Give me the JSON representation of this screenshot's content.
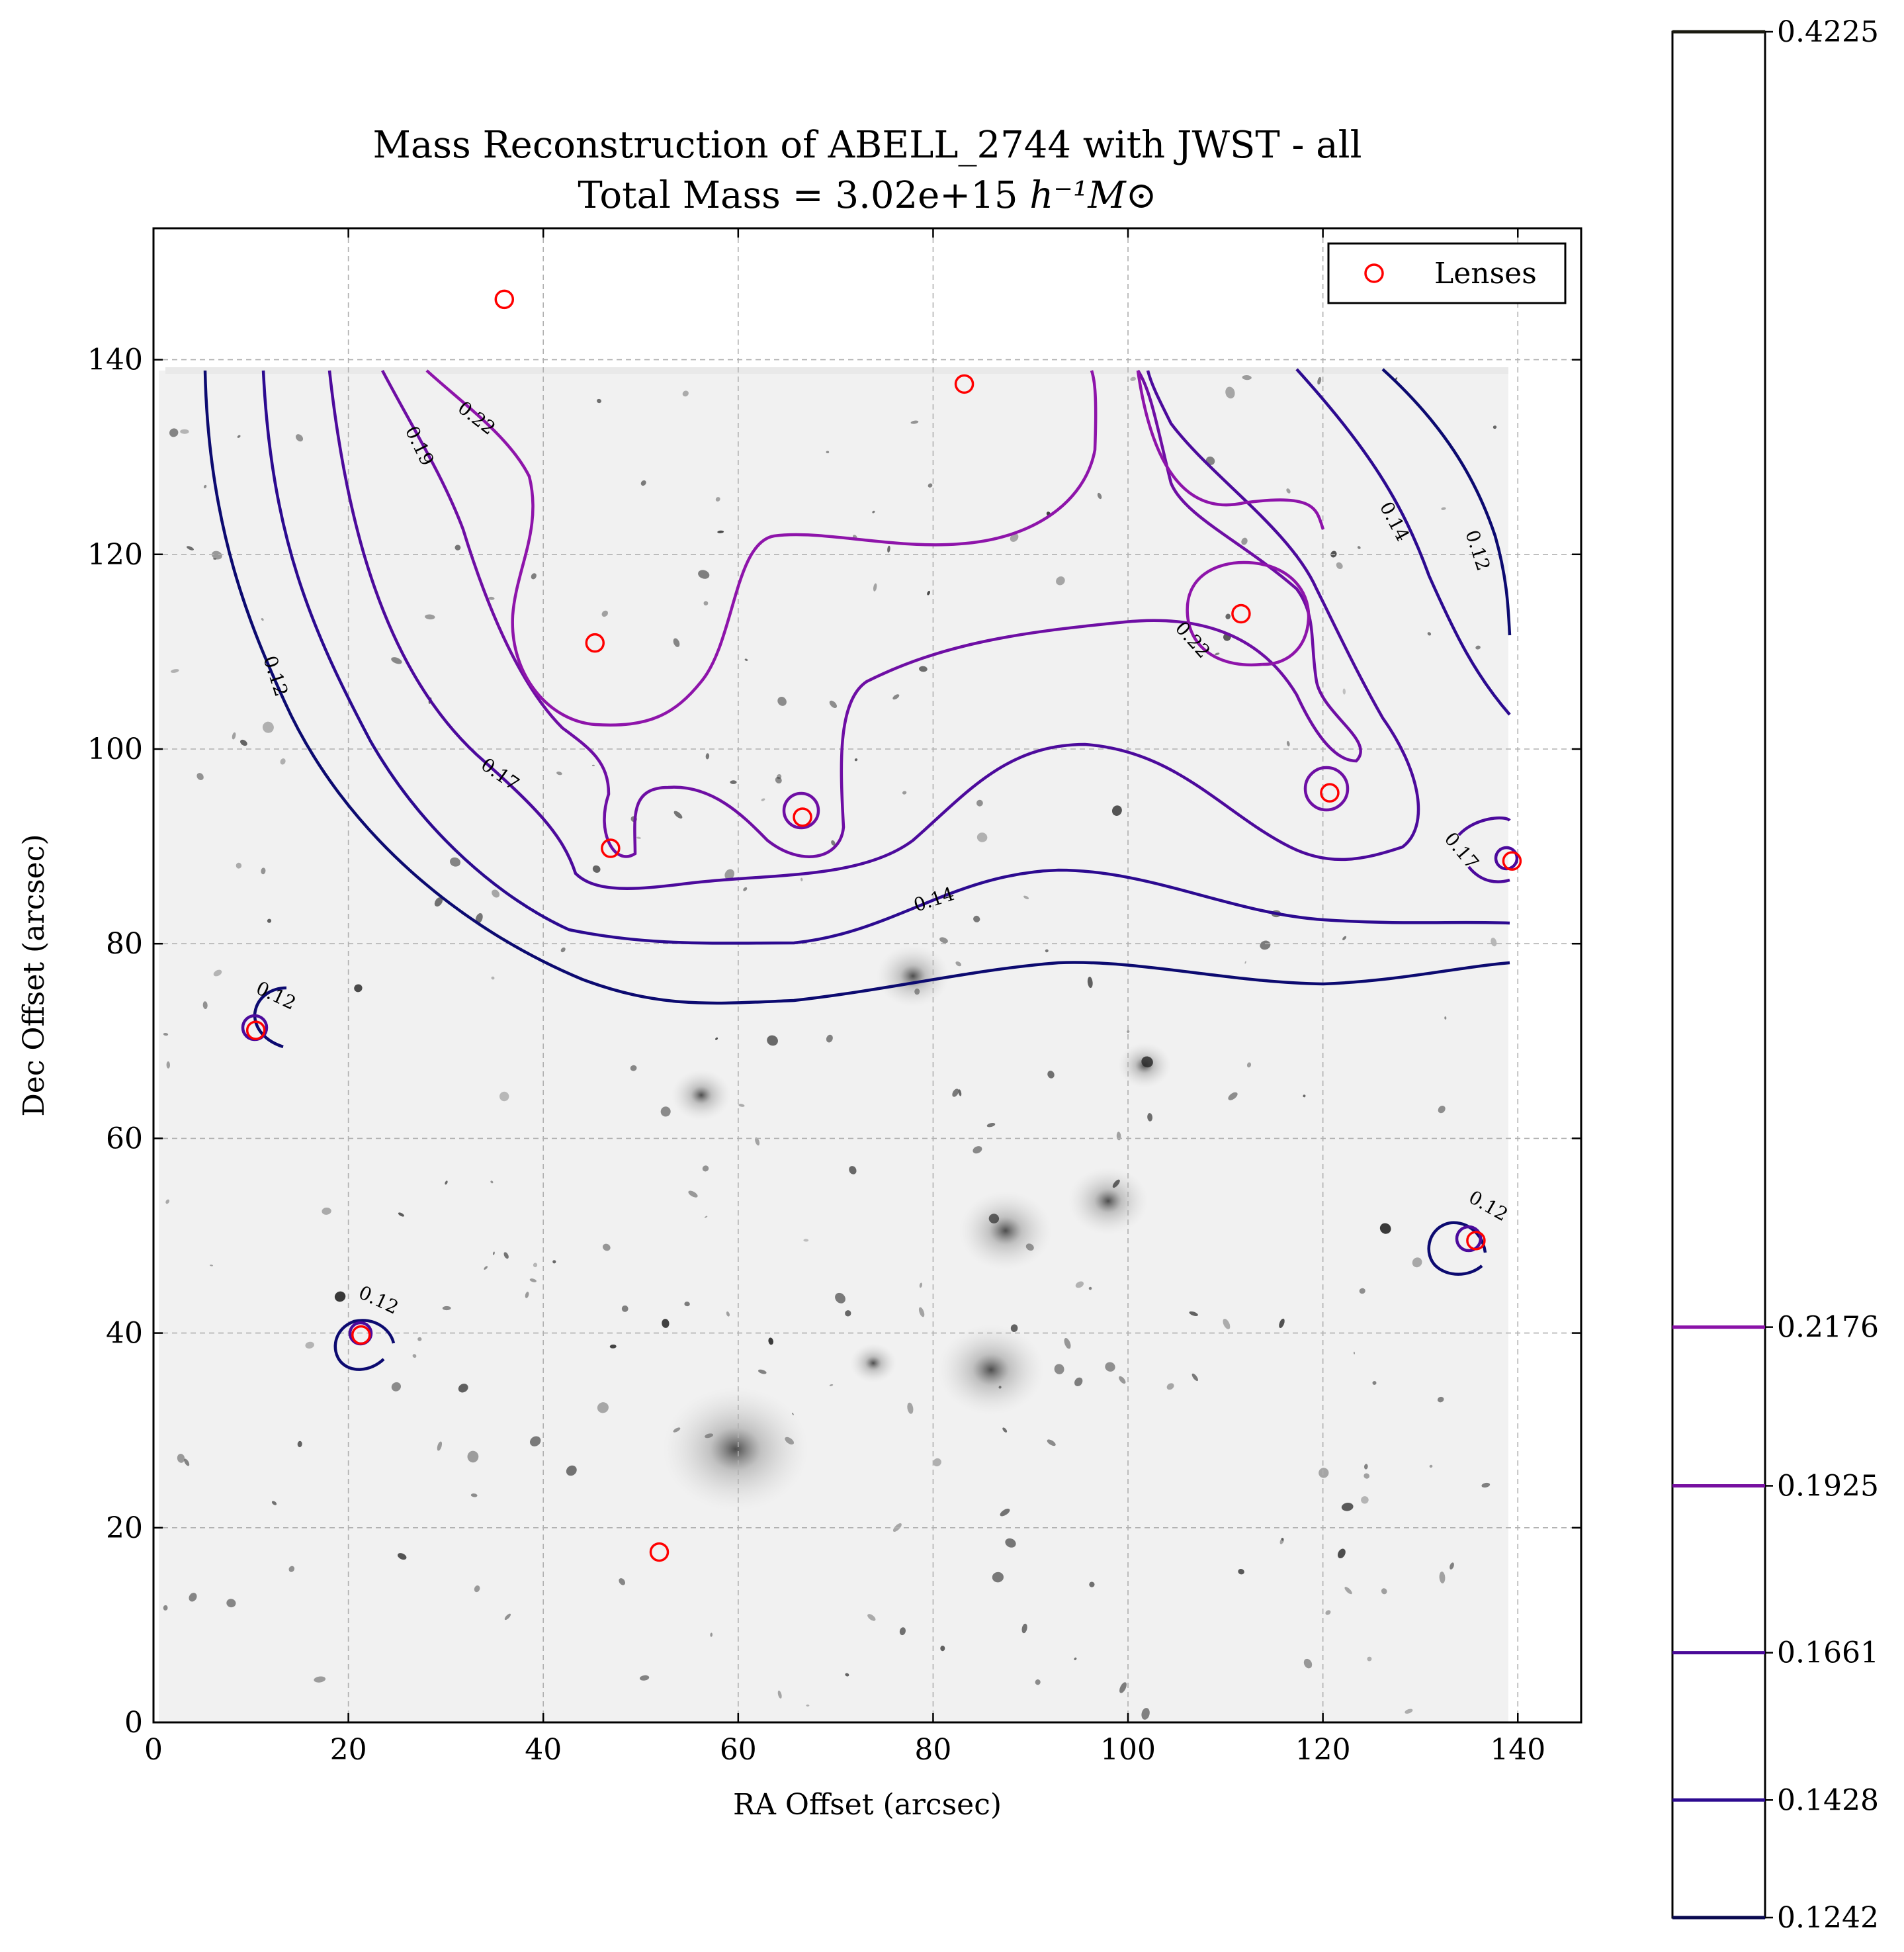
{
  "chart_data": {
    "type": "contour",
    "title": "Mass Reconstruction of ABELL_2744 with JWST - all",
    "subtitle_prefix": "Total Mass = 3.02e+15 ",
    "subtitle_units": "h⁻¹M⊙",
    "xlabel": "RA Offset (arcsec)",
    "ylabel": "Dec Offset (arcsec)",
    "xlim": [
      0,
      146.5
    ],
    "ylim": [
      0,
      153.5
    ],
    "xticks": [
      0,
      20,
      40,
      60,
      80,
      100,
      120,
      140
    ],
    "yticks": [
      0,
      20,
      40,
      60,
      80,
      100,
      120,
      140
    ],
    "grid": true,
    "legend": {
      "placement": "upper right",
      "entries": [
        "Lenses"
      ]
    },
    "lenses": [
      {
        "x": 36.0,
        "y": 146.2
      },
      {
        "x": 83.2,
        "y": 137.5
      },
      {
        "x": 45.3,
        "y": 110.9
      },
      {
        "x": 111.6,
        "y": 113.9
      },
      {
        "x": 46.9,
        "y": 89.8
      },
      {
        "x": 66.6,
        "y": 93.0
      },
      {
        "x": 120.7,
        "y": 95.5
      },
      {
        "x": 139.4,
        "y": 88.5
      },
      {
        "x": 10.5,
        "y": 71.1
      },
      {
        "x": 21.3,
        "y": 39.8
      },
      {
        "x": 135.7,
        "y": 49.5
      },
      {
        "x": 51.9,
        "y": 17.5
      }
    ],
    "contour_levels": [
      0.12,
      0.14,
      0.17,
      0.19,
      0.22
    ],
    "contour_labels": [
      "0.12",
      "0.14",
      "0.17",
      "0.19",
      "0.22"
    ],
    "colorbar": {
      "ticks": [
        "0.4225",
        "0.2176",
        "0.1925",
        "0.1661",
        "0.1428",
        "0.1242"
      ],
      "values": [
        0.4225,
        0.2176,
        0.1925,
        0.1661,
        0.1428,
        0.1242
      ],
      "colors": [
        "#1a1a10",
        "#8a12a8",
        "#7610a0",
        "#4a0a98",
        "#2c0a90",
        "#0a0a50"
      ]
    },
    "colors": {
      "c012": "#0c0a70",
      "c014": "#2c0a90",
      "c017": "#4c0a9c",
      "c019": "#6e0ea4",
      "c022": "#8e14aa",
      "lens": "#ff0000"
    }
  }
}
